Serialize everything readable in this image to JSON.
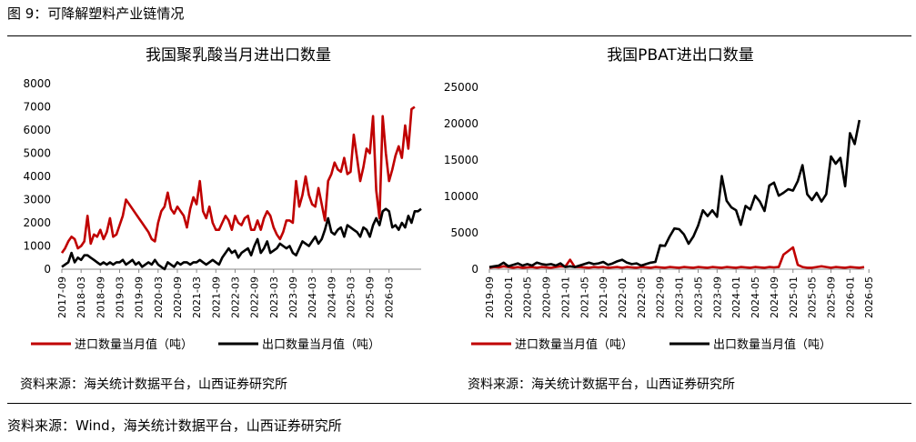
{
  "figure": {
    "title": "图 9：可降解塑料产业链情况",
    "footer_source": "资料来源：Wind，海关统计数据平台，山西证券研究所"
  },
  "colors": {
    "import": "#c00000",
    "export": "#000000"
  },
  "chart_data": [
    {
      "type": "line",
      "title": "我国聚乳酸当月进出口数量",
      "x_tick_labels": [
        "2017-09",
        "2018-03",
        "2018-09",
        "2019-03",
        "2019-09",
        "2020-03",
        "2020-09",
        "2021-03",
        "2021-09",
        "2022-03",
        "2022-09",
        "2023-03",
        "2023-09",
        "2024-03",
        "2024-09",
        "2025-03",
        "2025-09",
        "2026-03"
      ],
      "y_tick_labels": [
        "0",
        "1000",
        "2000",
        "3000",
        "4000",
        "5000",
        "6000",
        "7000",
        "8000"
      ],
      "ylim": [
        0,
        8000
      ],
      "x_start": "2017-09",
      "source": "资料来源：海关统计数据平台，山西证券研究所",
      "series": [
        {
          "name": "进口数量当月值（吨）",
          "color": "#c00000",
          "values": [
            700,
            900,
            1200,
            1400,
            1300,
            900,
            1000,
            1200,
            2300,
            1100,
            1500,
            1400,
            1700,
            1300,
            1600,
            2200,
            1400,
            1500,
            1900,
            2300,
            3000,
            2800,
            2600,
            2400,
            2200,
            2000,
            1800,
            1600,
            1300,
            1200,
            2000,
            2500,
            2700,
            3300,
            2600,
            2400,
            2700,
            2500,
            2300,
            1800,
            2600,
            3100,
            2800,
            3800,
            2500,
            2200,
            2700,
            2000,
            1700,
            1700,
            2000,
            2300,
            2100,
            1700,
            2300,
            2000,
            1900,
            2200,
            2300,
            1700,
            1700,
            2100,
            1700,
            2200,
            2500,
            2300,
            1800,
            1500,
            1300,
            1600,
            2100,
            2100,
            2000,
            3800,
            2700,
            3200,
            4000,
            3200,
            2800,
            2700,
            3500,
            2800,
            2100,
            3800,
            4100,
            4600,
            4300,
            4200,
            4800,
            4100,
            4200,
            5800,
            4800,
            3800,
            4400,
            5200,
            5000,
            6600,
            3400,
            2200,
            6600,
            5000,
            3800,
            4300,
            4900,
            5300,
            4800,
            6200,
            5200,
            6900,
            7000
          ]
        },
        {
          "name": "出口数量当月值（吨）",
          "color": "#000000",
          "values": [
            100,
            200,
            300,
            700,
            300,
            500,
            400,
            600,
            600,
            500,
            400,
            300,
            200,
            300,
            200,
            300,
            200,
            300,
            300,
            400,
            200,
            300,
            400,
            200,
            300,
            100,
            200,
            300,
            200,
            400,
            200,
            100,
            0,
            300,
            200,
            100,
            300,
            200,
            300,
            300,
            200,
            300,
            300,
            400,
            300,
            200,
            300,
            400,
            300,
            200,
            500,
            700,
            900,
            700,
            800,
            500,
            700,
            800,
            900,
            600,
            1000,
            1300,
            700,
            900,
            1200,
            700,
            800,
            900,
            1100,
            1000,
            900,
            1000,
            700,
            600,
            900,
            1200,
            1100,
            1000,
            1200,
            1400,
            1100,
            1300,
            1700,
            2200,
            1600,
            1500,
            1700,
            1800,
            1400,
            1900,
            1800,
            1700,
            1600,
            1400,
            1800,
            1700,
            1400,
            1900,
            2200,
            1900,
            2500,
            2600,
            2500,
            1800,
            1900,
            1700,
            2000,
            1800,
            2300,
            2000,
            2500,
            2500,
            2600
          ]
        }
      ]
    },
    {
      "type": "line",
      "title": "我国PBAT进出口数量",
      "x_tick_labels": [
        "2019-09",
        "2020-01",
        "2020-05",
        "2020-09",
        "2021-01",
        "2021-05",
        "2021-09",
        "2022-01",
        "2022-05",
        "2022-09",
        "2023-01",
        "2023-05",
        "2023-09",
        "2024-01",
        "2024-05",
        "2024-09",
        "2025-01",
        "2025-05",
        "2025-09",
        "2026-01",
        "2026-05"
      ],
      "y_tick_labels": [
        "0",
        "5000",
        "10000",
        "15000",
        "20000",
        "25000"
      ],
      "ylim": [
        0,
        25000
      ],
      "x_start": "2019-09",
      "source": "资料来源：海关统计数据平台，山西证券研究所",
      "series": [
        {
          "name": "进口数量当月值（吨）",
          "color": "#c00000",
          "values": [
            200,
            300,
            250,
            400,
            300,
            200,
            300,
            200,
            250,
            300,
            200,
            300,
            250,
            200,
            300,
            400,
            350,
            1300,
            300,
            300,
            250,
            200,
            300,
            250,
            300,
            200,
            250,
            300,
            200,
            300,
            250,
            200,
            300,
            250,
            200,
            300,
            250,
            200,
            300,
            250,
            200,
            300,
            250,
            200,
            300,
            250,
            200,
            300,
            250,
            200,
            300,
            250,
            200,
            300,
            250,
            200,
            300,
            250,
            200,
            300,
            250,
            300,
            2000,
            2500,
            3000,
            600,
            300,
            200,
            200,
            300,
            400,
            300,
            200,
            300,
            250,
            200,
            300,
            250,
            200,
            300
          ]
        },
        {
          "name": "出口数量当月值（吨）",
          "color": "#000000",
          "values": [
            300,
            400,
            500,
            900,
            400,
            600,
            800,
            500,
            700,
            500,
            900,
            700,
            600,
            700,
            500,
            800,
            300,
            400,
            300,
            500,
            700,
            900,
            700,
            800,
            1000,
            600,
            800,
            1100,
            1300,
            900,
            700,
            800,
            500,
            700,
            900,
            1000,
            3300,
            3200,
            4500,
            5600,
            5500,
            4800,
            3500,
            4500,
            6000,
            8100,
            7300,
            8100,
            7200,
            12800,
            9400,
            8500,
            8100,
            6100,
            8700,
            8200,
            10100,
            9300,
            8000,
            11500,
            11900,
            10100,
            10500,
            11000,
            10800,
            12100,
            14300,
            10300,
            9500,
            10500,
            9300,
            10300,
            15500,
            14500,
            15300,
            11400,
            18700,
            17200,
            20500
          ]
        }
      ]
    }
  ]
}
